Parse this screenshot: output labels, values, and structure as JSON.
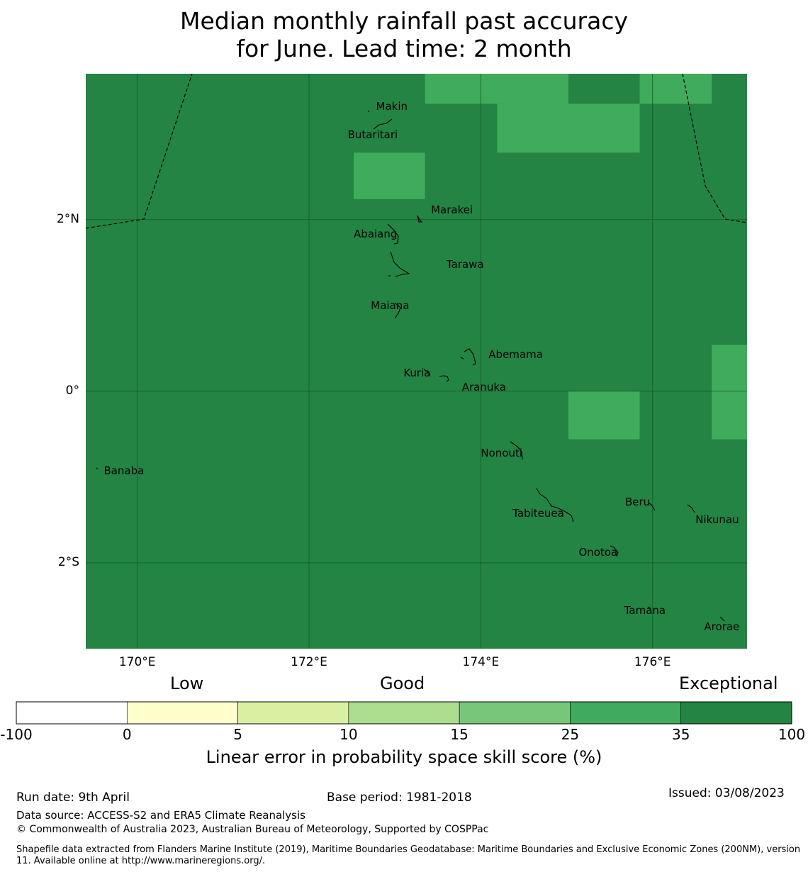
{
  "title": {
    "line1": "Median monthly rainfall past accuracy",
    "line2": "for June. Lead time: 2 month"
  },
  "map": {
    "lon_range": [
      169.4,
      177.1
    ],
    "lat_range": [
      -3.0,
      3.7
    ],
    "x_ticks": [
      {
        "value": 170,
        "label": "170°E"
      },
      {
        "value": 172,
        "label": "172°E"
      },
      {
        "value": 174,
        "label": "174°E"
      },
      {
        "value": 176,
        "label": "176°E"
      }
    ],
    "y_ticks": [
      {
        "value": 2,
        "label": "2°N"
      },
      {
        "value": 0,
        "label": "0°"
      },
      {
        "value": -2,
        "label": "2°S"
      }
    ],
    "background_color": "#238443",
    "cells": [
      {
        "lon": [
          173.35,
          175.02
        ],
        "lat": [
          3.35,
          3.7
        ],
        "color": "#41ab5d"
      },
      {
        "lon": [
          174.19,
          175.85
        ],
        "lat": [
          2.78,
          3.35
        ],
        "color": "#41ab5d"
      },
      {
        "lon": [
          175.85,
          176.69
        ],
        "lat": [
          3.35,
          3.7
        ],
        "color": "#41ab5d"
      },
      {
        "lon": [
          172.52,
          173.35
        ],
        "lat": [
          2.24,
          2.78
        ],
        "color": "#41ab5d"
      },
      {
        "lon": [
          175.02,
          175.85
        ],
        "lat": [
          -0.56,
          0.0
        ],
        "color": "#41ab5d"
      },
      {
        "lon": [
          176.69,
          177.1
        ],
        "lat": [
          -0.56,
          0.54
        ],
        "color": "#41ab5d"
      }
    ],
    "places": [
      {
        "name": "Makin",
        "lon": 172.78,
        "lat": 3.3
      },
      {
        "name": "Butaritari",
        "lon": 172.45,
        "lat": 2.97
      },
      {
        "name": "Marakei",
        "lon": 173.42,
        "lat": 2.1
      },
      {
        "name": "Abaiang",
        "lon": 172.52,
        "lat": 1.82
      },
      {
        "name": "Tarawa",
        "lon": 173.6,
        "lat": 1.46
      },
      {
        "name": "Maiana",
        "lon": 172.72,
        "lat": 0.98
      },
      {
        "name": "Abemama",
        "lon": 174.09,
        "lat": 0.41
      },
      {
        "name": "Kuria",
        "lon": 173.1,
        "lat": 0.2
      },
      {
        "name": "Aranuka",
        "lon": 173.78,
        "lat": 0.03
      },
      {
        "name": "Banaba",
        "lon": 169.61,
        "lat": -0.94
      },
      {
        "name": "Nonouti",
        "lon": 174.0,
        "lat": -0.74
      },
      {
        "name": "Beru",
        "lon": 175.68,
        "lat": -1.31
      },
      {
        "name": "Tabiteuea",
        "lon": 174.37,
        "lat": -1.44
      },
      {
        "name": "Nikunau",
        "lon": 176.5,
        "lat": -1.51
      },
      {
        "name": "Onotoa",
        "lon": 175.14,
        "lat": -1.89
      },
      {
        "name": "Tamana",
        "lon": 175.67,
        "lat": -2.57
      },
      {
        "name": "Arorae",
        "lon": 176.6,
        "lat": -2.76
      }
    ]
  },
  "colorbar": {
    "headers": {
      "low": "Low",
      "good": "Good",
      "exceptional": "Exceptional"
    },
    "bins": [
      {
        "from": "-100",
        "to": "0",
        "color": "#ffffff"
      },
      {
        "from": "0",
        "to": "5",
        "color": "#ffffcc"
      },
      {
        "from": "5",
        "to": "10",
        "color": "#d9f0a3"
      },
      {
        "from": "10",
        "to": "15",
        "color": "#addd8e"
      },
      {
        "from": "15",
        "to": "25",
        "color": "#78c679"
      },
      {
        "from": "25",
        "to": "35",
        "color": "#41ab5d"
      },
      {
        "from": "35",
        "to": "100",
        "color": "#238443"
      }
    ],
    "ticks": [
      "-100",
      "0",
      "5",
      "10",
      "15",
      "25",
      "35",
      "100"
    ],
    "label": "Linear error in probability space skill score (%)"
  },
  "footer": {
    "run_date": "Run date: 9th April",
    "base_period": "Base period: 1981-2018",
    "issued": "Issued: 03/08/2023",
    "data_source": "Data source: ACCESS-S2 and ERA5 Climate Reanalysis",
    "copyright": "© Commonwealth of Australia 2023, Australian Bureau of Meteorology, Supported by COSPPac",
    "shapefile": "Shapefile data extracted from Flanders Marine Institute (2019), Maritime Boundaries Geodatabase: Maritime Boundaries and Exclusive Economic Zones (200NM), version 11. Available online at http://www.marineregions.org/."
  }
}
